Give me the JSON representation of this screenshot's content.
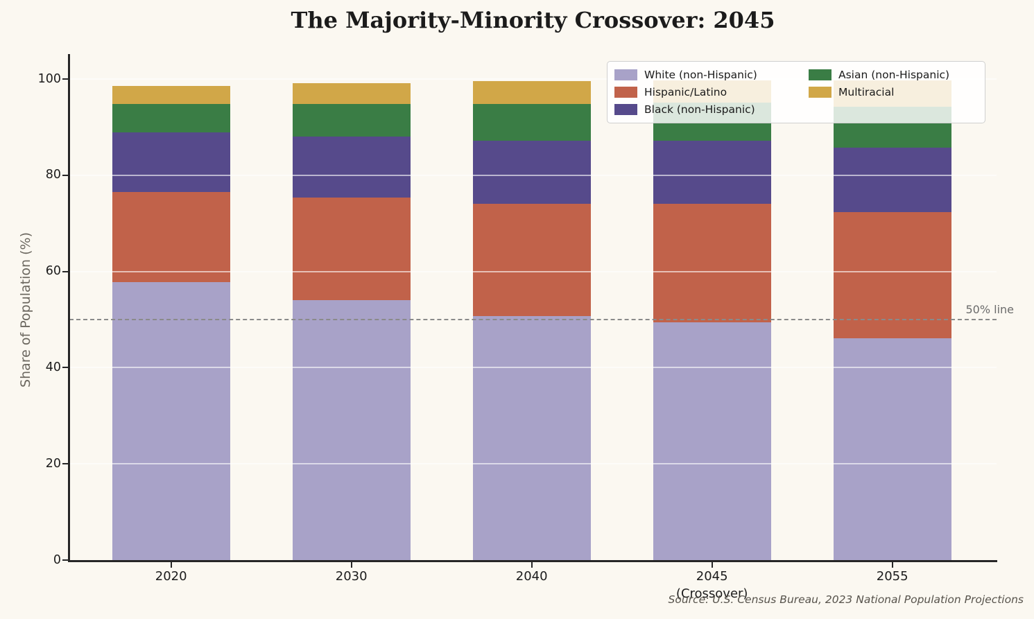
{
  "page": {
    "background_color": "#fbf8f1",
    "axis_color": "#262626"
  },
  "chart_data": {
    "type": "bar",
    "stacked": true,
    "title": "The Majority-Minority Crossover: 2045",
    "ylabel": "Share of Population (%)",
    "xlabel": "",
    "ylim": [
      0,
      105
    ],
    "yticks": [
      0,
      20,
      40,
      60,
      80,
      100
    ],
    "grid": true,
    "legend_position": "upper right",
    "categories": [
      "2020",
      "2030",
      "2040",
      "2045",
      "2055"
    ],
    "category_sublabels": [
      "",
      "",
      "",
      "(Crossover)",
      ""
    ],
    "series": [
      {
        "name": "White (non-Hispanic)",
        "color": "#a8a2c8",
        "values": [
          57.8,
          54.0,
          50.7,
          49.4,
          46.1
        ]
      },
      {
        "name": "Hispanic/Latino",
        "color": "#c1624a",
        "values": [
          18.7,
          21.3,
          23.4,
          24.7,
          26.3
        ]
      },
      {
        "name": "Black (non-Hispanic)",
        "color": "#564a8b",
        "values": [
          12.4,
          12.7,
          13.1,
          13.1,
          13.3
        ]
      },
      {
        "name": "Asian (non-Hispanic)",
        "color": "#3a7d45",
        "values": [
          5.9,
          6.8,
          7.6,
          7.9,
          8.6
        ]
      },
      {
        "name": "Multiracial",
        "color": "#d1a748",
        "values": [
          3.7,
          4.4,
          4.8,
          4.6,
          5.4
        ]
      }
    ],
    "reference_line": {
      "value": 50,
      "label": "50% line",
      "color": "#8a8a8a"
    },
    "gridline_color": "rgba(255,255,255,0.60)",
    "source_note": "Source: U.S. Census Bureau, 2023 National Population Projections"
  }
}
